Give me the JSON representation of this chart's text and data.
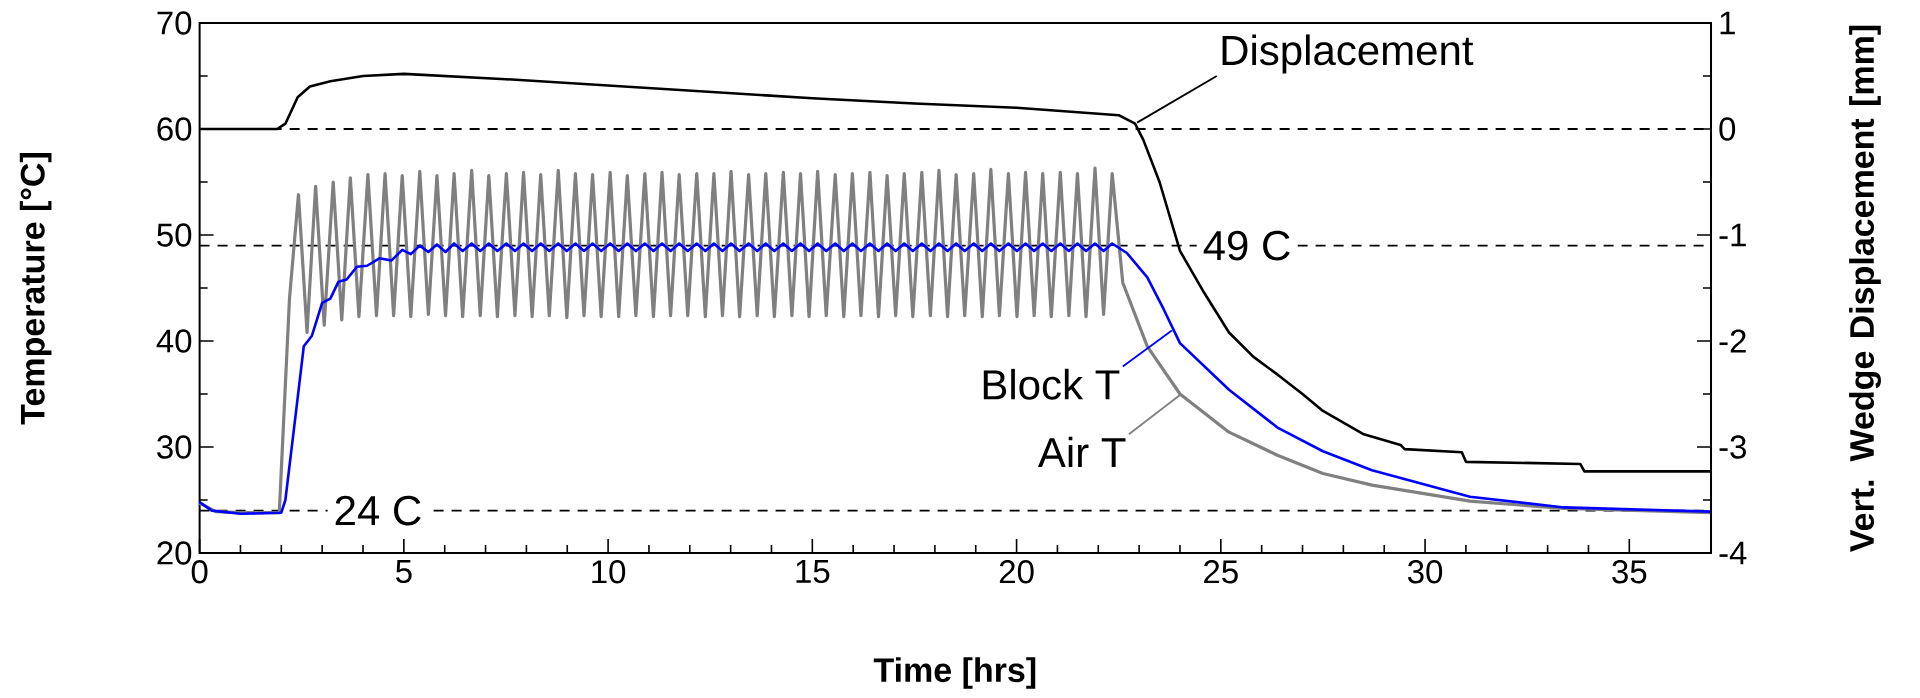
{
  "chart_data": {
    "type": "line",
    "xlabel": "Time [hrs]",
    "ylabel": "Temperature [°C]",
    "y2label": "Vert. Wedge Displacement [mm]",
    "xlim": [
      0,
      37
    ],
    "ylim": [
      20,
      70
    ],
    "y2lim": [
      -4,
      1
    ],
    "xticks": [
      0,
      5,
      10,
      15,
      20,
      25,
      30,
      35
    ],
    "yticks": [
      20,
      30,
      40,
      50,
      60,
      70
    ],
    "y2ticks": [
      -4,
      -3,
      -2,
      -1,
      0,
      1
    ],
    "line_style": "solid",
    "legend": "bottom right",
    "series": [
      {
        "name": "Air T",
        "color": "#808080",
        "axis": "y",
        "x": [
          0,
          0.4,
          1.0,
          1.95,
          2.2,
          2.42,
          2.63,
          2.84,
          3.05,
          3.27,
          3.48,
          3.69,
          3.9,
          4.12,
          4.33,
          4.54,
          4.75,
          4.96,
          5.17,
          5.39,
          5.6,
          5.81,
          6.02,
          6.23,
          6.44,
          6.66,
          6.87,
          7.08,
          7.29,
          7.51,
          7.72,
          7.93,
          8.14,
          8.35,
          8.56,
          8.78,
          8.99,
          9.2,
          9.41,
          9.62,
          9.83,
          10.05,
          10.26,
          10.47,
          10.68,
          10.9,
          11.11,
          11.32,
          11.53,
          11.74,
          11.95,
          12.17,
          12.38,
          12.59,
          12.8,
          13.01,
          13.22,
          13.44,
          13.65,
          13.86,
          14.07,
          14.29,
          14.5,
          14.71,
          14.92,
          15.13,
          15.34,
          15.56,
          15.77,
          15.98,
          16.19,
          16.41,
          16.62,
          16.83,
          17.04,
          17.25,
          17.46,
          17.68,
          17.89,
          18.1,
          18.31,
          18.52,
          18.73,
          18.95,
          19.16,
          19.37,
          19.58,
          19.8,
          20.01,
          20.22,
          20.43,
          20.64,
          20.85,
          21.07,
          21.28,
          21.49,
          21.7,
          21.92,
          22.13,
          22.34,
          22.6,
          23.2,
          24.0,
          25.2,
          26.4,
          27.5,
          28.7,
          31.1,
          33.4,
          37
        ],
        "values": [
          24.7,
          23.9,
          23.8,
          23.8,
          44.0,
          53.8,
          40.8,
          54.6,
          41.5,
          55.0,
          42.0,
          55.4,
          42.3,
          55.7,
          42.4,
          55.8,
          42.4,
          55.6,
          42.3,
          56.0,
          42.5,
          55.6,
          42.4,
          55.8,
          42.3,
          56.1,
          42.4,
          55.6,
          42.3,
          55.8,
          42.4,
          55.9,
          42.3,
          55.7,
          42.4,
          56.1,
          42.2,
          55.8,
          42.4,
          55.7,
          42.3,
          55.9,
          42.3,
          55.6,
          42.4,
          55.8,
          42.3,
          55.9,
          42.4,
          55.7,
          42.4,
          55.8,
          42.3,
          55.8,
          42.4,
          56.0,
          42.3,
          55.7,
          42.4,
          55.8,
          42.3,
          55.9,
          42.4,
          55.8,
          42.3,
          56.0,
          42.4,
          55.7,
          42.3,
          55.8,
          42.4,
          55.9,
          42.3,
          55.6,
          42.4,
          55.8,
          42.3,
          55.9,
          42.4,
          56.1,
          42.3,
          55.7,
          42.4,
          55.8,
          42.3,
          56.2,
          42.4,
          55.8,
          42.3,
          55.9,
          42.4,
          55.8,
          42.3,
          55.9,
          42.4,
          55.8,
          42.3,
          56.3,
          42.5,
          55.8,
          45.5,
          39.5,
          35.0,
          31.4,
          29.2,
          27.5,
          26.4,
          24.9,
          24.2,
          23.8
        ]
      },
      {
        "name": "Block T",
        "color": "#0000ff",
        "axis": "y",
        "x": [
          0,
          0.3,
          1.0,
          2.0,
          2.1,
          2.35,
          2.55,
          2.75,
          3.0,
          3.2,
          3.4,
          3.6,
          3.85,
          4.1,
          4.4,
          4.7,
          4.96,
          5.17,
          5.39,
          5.6,
          5.81,
          6.02,
          6.23,
          6.44,
          6.66,
          6.87,
          7.08,
          7.29,
          7.51,
          7.72,
          7.93,
          8.14,
          8.35,
          8.56,
          8.78,
          8.99,
          9.2,
          9.41,
          9.62,
          9.83,
          10.05,
          10.26,
          10.47,
          10.68,
          10.9,
          11.11,
          11.32,
          11.53,
          11.74,
          11.95,
          12.17,
          12.38,
          12.59,
          12.8,
          13.01,
          13.22,
          13.44,
          13.65,
          13.86,
          14.07,
          14.29,
          14.5,
          14.71,
          14.92,
          15.13,
          15.34,
          15.56,
          15.77,
          15.98,
          16.19,
          16.41,
          16.62,
          16.83,
          17.04,
          17.25,
          17.46,
          17.68,
          17.89,
          18.1,
          18.31,
          18.52,
          18.73,
          18.95,
          19.16,
          19.37,
          19.58,
          19.8,
          20.01,
          20.22,
          20.43,
          20.64,
          20.85,
          21.07,
          21.28,
          21.49,
          21.7,
          21.92,
          22.13,
          22.34,
          22.7,
          23.2,
          23.6,
          24.0,
          25.2,
          26.4,
          27.5,
          28.7,
          31.1,
          33.4,
          37
        ],
        "values": [
          24.8,
          24.0,
          23.7,
          23.8,
          25.0,
          33.0,
          39.5,
          40.5,
          43.6,
          44.0,
          45.6,
          45.8,
          47.0,
          47.1,
          47.8,
          47.6,
          48.6,
          48.2,
          49.0,
          48.4,
          49.1,
          48.4,
          49.2,
          48.5,
          49.2,
          48.5,
          49.2,
          48.5,
          49.2,
          48.5,
          49.2,
          48.5,
          49.2,
          48.5,
          49.2,
          48.5,
          49.2,
          48.5,
          49.2,
          48.5,
          49.2,
          48.5,
          49.2,
          48.5,
          49.2,
          48.5,
          49.2,
          48.5,
          49.2,
          48.5,
          49.2,
          48.5,
          49.2,
          48.5,
          49.2,
          48.5,
          49.2,
          48.5,
          49.2,
          48.5,
          49.2,
          48.5,
          49.2,
          48.5,
          49.2,
          48.5,
          49.2,
          48.5,
          49.2,
          48.5,
          49.2,
          48.5,
          49.2,
          48.5,
          49.2,
          48.5,
          49.2,
          48.5,
          49.2,
          48.5,
          49.2,
          48.5,
          49.2,
          48.5,
          49.2,
          48.5,
          49.2,
          48.5,
          49.2,
          48.5,
          49.2,
          48.5,
          49.2,
          48.5,
          49.2,
          48.5,
          49.2,
          48.5,
          49.2,
          48.3,
          46.0,
          43.0,
          39.8,
          35.4,
          31.8,
          29.6,
          27.8,
          25.3,
          24.3,
          23.9
        ]
      },
      {
        "name": "Displacement",
        "color": "#000000",
        "axis": "y2",
        "x": [
          0,
          1.9,
          2.1,
          2.4,
          2.7,
          3.2,
          4.0,
          5.0,
          7.5,
          10,
          12.5,
          15,
          17.5,
          20,
          22.5,
          22.9,
          23.1,
          23.5,
          24.0,
          24.6,
          25.2,
          25.8,
          26.4,
          27.0,
          27.5,
          28.5,
          29.4,
          29.5,
          30.9,
          31.0,
          33.8,
          33.9,
          37
        ],
        "values": [
          0,
          0,
          0.05,
          0.3,
          0.4,
          0.45,
          0.5,
          0.52,
          0.47,
          0.41,
          0.35,
          0.29,
          0.24,
          0.2,
          0.13,
          0.05,
          -0.1,
          -0.5,
          -1.15,
          -1.55,
          -1.92,
          -2.15,
          -2.32,
          -2.5,
          -2.66,
          -2.88,
          -2.98,
          -3.02,
          -3.05,
          -3.14,
          -3.16,
          -3.23,
          -3.23
        ]
      }
    ],
    "ref_lines": [
      {
        "axis": "y",
        "value": 49,
        "label": "49 C",
        "line_style": "dashed"
      },
      {
        "axis": "y",
        "value": 24,
        "label": "24 C",
        "line_style": "dashed"
      },
      {
        "axis": "y2",
        "value": 0,
        "line_style": "dashed"
      }
    ]
  }
}
